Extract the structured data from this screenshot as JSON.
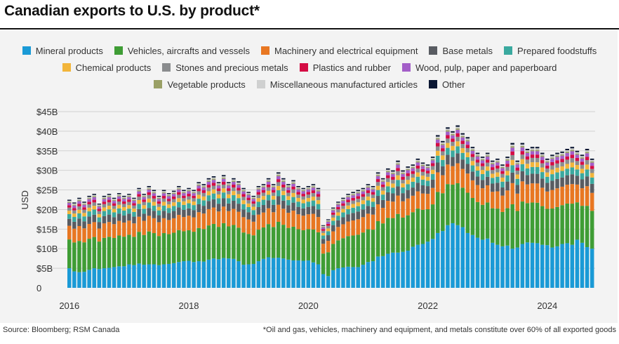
{
  "title": "Canadian exports to U.S. by product*",
  "source": "Source: Bloomberg; RSM Canada",
  "footnote": "*Oil and gas, vehicles, machinery and equipment, and metals constitute over 60% of all exported goods",
  "chart_data": {
    "type": "stacked-bar",
    "ylabel": "USD",
    "ylim": [
      0,
      45
    ],
    "yticks": [
      {
        "value": 0,
        "label": "0"
      },
      {
        "value": 5,
        "label": "$5B"
      },
      {
        "value": 10,
        "label": "$10B"
      },
      {
        "value": 15,
        "label": "$15B"
      },
      {
        "value": 20,
        "label": "$20B"
      },
      {
        "value": 25,
        "label": "$25B"
      },
      {
        "value": 30,
        "label": "$30B"
      },
      {
        "value": 35,
        "label": "$35B"
      },
      {
        "value": 40,
        "label": "$40B"
      },
      {
        "value": 45,
        "label": "$45B"
      }
    ],
    "xticks": [
      "2016",
      "2018",
      "2020",
      "2022",
      "2024"
    ],
    "xstart": "2016-01",
    "xend": "2024-10",
    "legend_rows": [
      [
        0,
        1,
        2,
        3,
        4
      ],
      [
        5,
        6,
        7,
        8
      ],
      [
        9,
        10,
        11
      ]
    ],
    "series": [
      {
        "name": "Mineral products",
        "color": "#1a9ad6"
      },
      {
        "name": "Vehicles, aircrafts and vessels",
        "color": "#3f9d35"
      },
      {
        "name": "Machinery and electrical equipment",
        "color": "#e87722"
      },
      {
        "name": "Base metals",
        "color": "#595c62"
      },
      {
        "name": "Prepared foodstuffs",
        "color": "#3aa99f"
      },
      {
        "name": "Chemical products",
        "color": "#f2b53a"
      },
      {
        "name": "Stones and precious metals",
        "color": "#8a8c8e"
      },
      {
        "name": "Plastics and rubber",
        "color": "#d40c44"
      },
      {
        "name": "Wood, pulp, paper and paperboard",
        "color": "#a35ec8"
      },
      {
        "name": "Vegetable products",
        "color": "#9aa066"
      },
      {
        "name": "Miscellaneous manufactured articles",
        "color": "#cfd0d0"
      },
      {
        "name": "Other",
        "color": "#0b1733"
      }
    ],
    "months": [
      {
        "m": "2016-01",
        "total": 22.5,
        "mineral": 5.0
      },
      {
        "m": "2016-02",
        "total": 21.8,
        "mineral": 4.2
      },
      {
        "m": "2016-03",
        "total": 23.0,
        "mineral": 4.0
      },
      {
        "m": "2016-04",
        "total": 22.0,
        "mineral": 4.1
      },
      {
        "m": "2016-05",
        "total": 23.5,
        "mineral": 4.6
      },
      {
        "m": "2016-06",
        "total": 24.0,
        "mineral": 5.0
      },
      {
        "m": "2016-07",
        "total": 21.5,
        "mineral": 4.8
      },
      {
        "m": "2016-08",
        "total": 23.5,
        "mineral": 5.0
      },
      {
        "m": "2016-09",
        "total": 24.0,
        "mineral": 5.1
      },
      {
        "m": "2016-10",
        "total": 23.0,
        "mineral": 5.3
      },
      {
        "m": "2016-11",
        "total": 24.2,
        "mineral": 5.5
      },
      {
        "m": "2016-12",
        "total": 23.5,
        "mineral": 5.5
      },
      {
        "m": "2017-01",
        "total": 24.0,
        "mineral": 6.0
      },
      {
        "m": "2017-02",
        "total": 23.0,
        "mineral": 5.8
      },
      {
        "m": "2017-03",
        "total": 25.5,
        "mineral": 6.2
      },
      {
        "m": "2017-04",
        "total": 24.0,
        "mineral": 5.9
      },
      {
        "m": "2017-05",
        "total": 26.0,
        "mineral": 6.0
      },
      {
        "m": "2017-06",
        "total": 25.0,
        "mineral": 6.0
      },
      {
        "m": "2017-07",
        "total": 23.5,
        "mineral": 5.8
      },
      {
        "m": "2017-08",
        "total": 25.0,
        "mineral": 6.0
      },
      {
        "m": "2017-09",
        "total": 24.2,
        "mineral": 6.1
      },
      {
        "m": "2017-10",
        "total": 24.8,
        "mineral": 6.3
      },
      {
        "m": "2017-11",
        "total": 26.0,
        "mineral": 6.6
      },
      {
        "m": "2017-12",
        "total": 25.0,
        "mineral": 6.8
      },
      {
        "m": "2018-01",
        "total": 25.5,
        "mineral": 6.9
      },
      {
        "m": "2018-02",
        "total": 25.0,
        "mineral": 6.6
      },
      {
        "m": "2018-03",
        "total": 27.0,
        "mineral": 6.8
      },
      {
        "m": "2018-04",
        "total": 26.5,
        "mineral": 6.7
      },
      {
        "m": "2018-05",
        "total": 28.0,
        "mineral": 7.2
      },
      {
        "m": "2018-06",
        "total": 28.5,
        "mineral": 7.5
      },
      {
        "m": "2018-07",
        "total": 27.0,
        "mineral": 7.3
      },
      {
        "m": "2018-08",
        "total": 28.8,
        "mineral": 7.6
      },
      {
        "m": "2018-09",
        "total": 27.0,
        "mineral": 7.5
      },
      {
        "m": "2018-10",
        "total": 28.0,
        "mineral": 7.4
      },
      {
        "m": "2018-11",
        "total": 27.2,
        "mineral": 6.8
      },
      {
        "m": "2018-12",
        "total": 25.5,
        "mineral": 5.9
      },
      {
        "m": "2019-01",
        "total": 24.5,
        "mineral": 6.0
      },
      {
        "m": "2019-02",
        "total": 23.5,
        "mineral": 6.1
      },
      {
        "m": "2019-03",
        "total": 26.0,
        "mineral": 6.8
      },
      {
        "m": "2019-04",
        "total": 26.5,
        "mineral": 7.4
      },
      {
        "m": "2019-05",
        "total": 28.0,
        "mineral": 7.8
      },
      {
        "m": "2019-06",
        "total": 26.5,
        "mineral": 7.6
      },
      {
        "m": "2019-07",
        "total": 29.5,
        "mineral": 7.7
      },
      {
        "m": "2019-08",
        "total": 28.0,
        "mineral": 7.5
      },
      {
        "m": "2019-09",
        "total": 26.5,
        "mineral": 7.2
      },
      {
        "m": "2019-10",
        "total": 27.5,
        "mineral": 7.0
      },
      {
        "m": "2019-11",
        "total": 26.0,
        "mineral": 7.0
      },
      {
        "m": "2019-12",
        "total": 25.5,
        "mineral": 6.9
      },
      {
        "m": "2020-01",
        "total": 26.0,
        "mineral": 7.0
      },
      {
        "m": "2020-02",
        "total": 26.5,
        "mineral": 6.5
      },
      {
        "m": "2020-03",
        "total": 25.5,
        "mineral": 6.0
      },
      {
        "m": "2020-04",
        "total": 16.0,
        "mineral": 3.5
      },
      {
        "m": "2020-05",
        "total": 17.5,
        "mineral": 3.0
      },
      {
        "m": "2020-06",
        "total": 20.5,
        "mineral": 4.5
      },
      {
        "m": "2020-07",
        "total": 22.0,
        "mineral": 5.0
      },
      {
        "m": "2020-08",
        "total": 23.0,
        "mineral": 5.2
      },
      {
        "m": "2020-09",
        "total": 24.0,
        "mineral": 5.4
      },
      {
        "m": "2020-10",
        "total": 24.5,
        "mineral": 5.3
      },
      {
        "m": "2020-11",
        "total": 25.0,
        "mineral": 5.3
      },
      {
        "m": "2020-12",
        "total": 25.5,
        "mineral": 5.9
      },
      {
        "m": "2021-01",
        "total": 26.5,
        "mineral": 6.6
      },
      {
        "m": "2021-02",
        "total": 26.0,
        "mineral": 6.8
      },
      {
        "m": "2021-03",
        "total": 29.5,
        "mineral": 8.0
      },
      {
        "m": "2021-04",
        "total": 28.0,
        "mineral": 8.1
      },
      {
        "m": "2021-05",
        "total": 30.5,
        "mineral": 8.7
      },
      {
        "m": "2021-06",
        "total": 30.0,
        "mineral": 9.0
      },
      {
        "m": "2021-07",
        "total": 32.5,
        "mineral": 9.0
      },
      {
        "m": "2021-08",
        "total": 30.0,
        "mineral": 9.2
      },
      {
        "m": "2021-09",
        "total": 31.0,
        "mineral": 9.5
      },
      {
        "m": "2021-10",
        "total": 31.5,
        "mineral": 10.5
      },
      {
        "m": "2021-11",
        "total": 33.0,
        "mineral": 11.0
      },
      {
        "m": "2021-12",
        "total": 32.0,
        "mineral": 11.2
      },
      {
        "m": "2022-01",
        "total": 31.5,
        "mineral": 11.8
      },
      {
        "m": "2022-02",
        "total": 33.5,
        "mineral": 12.5
      },
      {
        "m": "2022-03",
        "total": 39.0,
        "mineral": 14.0
      },
      {
        "m": "2022-04",
        "total": 37.5,
        "mineral": 14.5
      },
      {
        "m": "2022-05",
        "total": 41.0,
        "mineral": 16.0
      },
      {
        "m": "2022-06",
        "total": 40.0,
        "mineral": 16.5
      },
      {
        "m": "2022-07",
        "total": 41.5,
        "mineral": 16.0
      },
      {
        "m": "2022-08",
        "total": 39.5,
        "mineral": 15.5
      },
      {
        "m": "2022-09",
        "total": 38.5,
        "mineral": 14.0
      },
      {
        "m": "2022-10",
        "total": 36.0,
        "mineral": 13.5
      },
      {
        "m": "2022-11",
        "total": 34.5,
        "mineral": 12.8
      },
      {
        "m": "2022-12",
        "total": 33.5,
        "mineral": 12.3
      },
      {
        "m": "2023-01",
        "total": 34.5,
        "mineral": 12.6
      },
      {
        "m": "2023-02",
        "total": 32.5,
        "mineral": 11.5
      },
      {
        "m": "2023-03",
        "total": 33.0,
        "mineral": 11.0
      },
      {
        "m": "2023-04",
        "total": 31.5,
        "mineral": 10.6
      },
      {
        "m": "2023-05",
        "total": 33.5,
        "mineral": 10.8
      },
      {
        "m": "2023-06",
        "total": 37.0,
        "mineral": 10.0
      },
      {
        "m": "2023-07",
        "total": 32.5,
        "mineral": 10.3
      },
      {
        "m": "2023-08",
        "total": 37.0,
        "mineral": 11.2
      },
      {
        "m": "2023-09",
        "total": 35.5,
        "mineral": 11.6
      },
      {
        "m": "2023-10",
        "total": 36.0,
        "mineral": 11.5
      },
      {
        "m": "2023-11",
        "total": 36.0,
        "mineral": 11.4
      },
      {
        "m": "2023-12",
        "total": 34.5,
        "mineral": 11.0
      },
      {
        "m": "2024-01",
        "total": 33.0,
        "mineral": 10.9
      },
      {
        "m": "2024-02",
        "total": 34.0,
        "mineral": 10.3
      },
      {
        "m": "2024-03",
        "total": 34.5,
        "mineral": 10.6
      },
      {
        "m": "2024-04",
        "total": 34.8,
        "mineral": 11.2
      },
      {
        "m": "2024-05",
        "total": 35.5,
        "mineral": 11.4
      },
      {
        "m": "2024-06",
        "total": 36.0,
        "mineral": 11.0
      },
      {
        "m": "2024-07",
        "total": 35.0,
        "mineral": 12.3
      },
      {
        "m": "2024-08",
        "total": 34.0,
        "mineral": 11.5
      },
      {
        "m": "2024-09",
        "total": 35.5,
        "mineral": 10.4
      },
      {
        "m": "2024-10",
        "total": 33.0,
        "mineral": 10.0
      }
    ],
    "other_shares": [
      0.42,
      0.2,
      0.1,
      0.07,
      0.05,
      0.045,
      0.035,
      0.035,
      0.015,
      0.015,
      0.015
    ]
  }
}
